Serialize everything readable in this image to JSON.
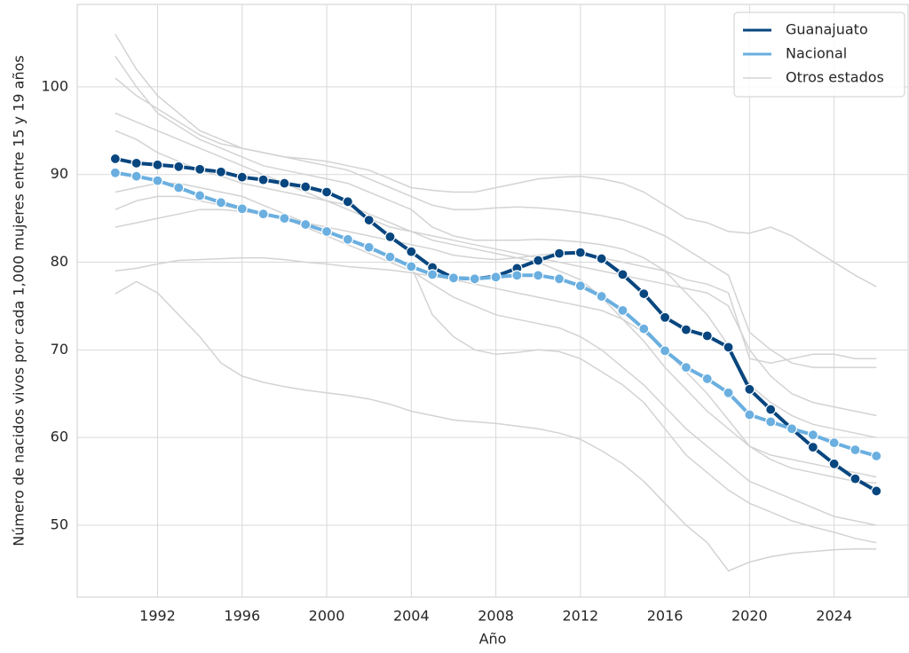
{
  "chart_data": {
    "type": "line",
    "xlabel": "Año",
    "ylabel": "Número de nacidos vivos por cada 1,000 mujeres entre 15 y 19 años",
    "x": [
      1990,
      1991,
      1992,
      1993,
      1994,
      1995,
      1996,
      1997,
      1998,
      1999,
      2000,
      2001,
      2002,
      2003,
      2004,
      2005,
      2006,
      2007,
      2008,
      2009,
      2010,
      2011,
      2012,
      2013,
      2014,
      2015,
      2016,
      2017,
      2018,
      2019,
      2020,
      2021,
      2022,
      2023,
      2024,
      2025,
      2026
    ],
    "xlim": [
      1988.2,
      2027.5
    ],
    "xticks": [
      1992,
      1996,
      2000,
      2004,
      2008,
      2012,
      2016,
      2020,
      2024
    ],
    "ylim": [
      41.8,
      109.4
    ],
    "yticks": [
      50,
      60,
      70,
      80,
      90,
      100
    ],
    "grid": true,
    "legend": "upper right",
    "series": [
      {
        "name": "Guanajuato",
        "color": "#08467f",
        "values": [
          91.8,
          91.3,
          91.1,
          90.9,
          90.6,
          90.3,
          89.7,
          89.4,
          89.0,
          88.6,
          88.0,
          86.9,
          84.8,
          82.9,
          81.2,
          79.4,
          78.2,
          78.1,
          78.4,
          79.3,
          80.2,
          81.0,
          81.1,
          80.4,
          78.6,
          76.4,
          73.7,
          72.3,
          71.6,
          70.3,
          65.5,
          63.2,
          61.0,
          58.9,
          57.0,
          55.3,
          53.9
        ]
      },
      {
        "name": "Nacional",
        "color": "#6aafe0",
        "values": [
          90.2,
          89.8,
          89.3,
          88.5,
          87.6,
          86.8,
          86.1,
          85.5,
          85.0,
          84.3,
          83.5,
          82.6,
          81.7,
          80.6,
          79.5,
          78.6,
          78.2,
          78.1,
          78.3,
          78.5,
          78.5,
          78.1,
          77.3,
          76.1,
          74.5,
          72.4,
          69.9,
          68.0,
          66.7,
          65.1,
          62.6,
          61.8,
          61.0,
          60.3,
          59.4,
          58.6,
          57.9
        ]
      }
    ],
    "other_states": {
      "name": "Otros estados",
      "color": "#d3d3d3",
      "lines": [
        [
          106,
          102,
          99,
          97,
          95,
          94,
          93,
          92.5,
          92,
          91.5,
          91,
          90.5,
          89.5,
          88.5,
          87.5,
          86.5,
          86,
          86,
          86.2,
          86.3,
          86.2,
          86,
          85.7,
          85.3,
          84.8,
          84,
          83,
          81.5,
          80,
          78.5,
          72,
          70,
          68.5,
          68,
          68,
          68,
          68
        ],
        [
          101,
          99,
          97.5,
          96,
          94.5,
          93.5,
          93,
          92.5,
          92,
          91.8,
          91.5,
          91,
          90.5,
          89.5,
          88.5,
          88.2,
          88,
          88,
          88.5,
          89,
          89.5,
          89.7,
          89.8,
          89.5,
          89,
          88,
          86.5,
          85,
          84.5,
          83.5,
          83.3,
          84,
          83,
          81.5,
          80,
          78.5,
          77.2
        ],
        [
          76.4,
          77.8,
          76.5,
          74,
          71.5,
          68.5,
          67,
          66.3,
          65.8,
          65.4,
          65.1,
          64.8,
          64.4,
          63.8,
          63,
          62.5,
          62,
          61.8,
          61.6,
          61.3,
          61,
          60.5,
          59.8,
          58.5,
          57,
          55,
          52.5,
          50,
          48,
          44.8,
          45.8,
          46.4,
          46.8,
          47,
          47.2,
          47.3,
          47.3
        ],
        [
          79,
          79.3,
          79.8,
          80.2,
          80.3,
          80.4,
          80.5,
          80.5,
          80.3,
          80,
          79.8,
          79.5,
          79.3,
          79.1,
          78.8,
          78.4,
          78,
          77.5,
          77,
          76.5,
          76,
          75.5,
          75,
          74.5,
          73.5,
          72,
          70,
          67.5,
          65,
          62,
          59,
          57.5,
          56.5,
          56,
          55.5,
          55,
          54.8
        ],
        [
          84,
          84.5,
          85,
          85.5,
          86,
          86,
          85.8,
          85.5,
          85,
          84.5,
          84,
          83.5,
          83,
          82.5,
          82,
          81.5,
          80.8,
          80.5,
          80.3,
          80.5,
          80.8,
          81,
          81,
          80.5,
          80,
          79.5,
          79,
          78,
          77.5,
          76.5,
          69,
          68.5,
          69,
          69.5,
          69.5,
          69,
          69
        ],
        [
          95,
          94,
          92.5,
          91.5,
          90.5,
          89.8,
          89,
          88.5,
          88,
          87.5,
          87,
          86.5,
          85.5,
          84.5,
          83.5,
          82.5,
          82,
          81.5,
          81,
          80.5,
          80,
          79,
          78,
          76,
          73.5,
          71,
          68,
          65.5,
          63,
          61,
          59,
          58,
          57.5,
          57,
          56.5,
          56,
          55.5
        ],
        [
          86,
          87,
          87.5,
          87.5,
          87,
          86.5,
          86,
          85.5,
          85,
          84,
          83,
          82,
          81,
          80,
          79,
          77.5,
          76,
          75,
          74,
          73.5,
          73,
          72.5,
          71.5,
          70,
          68,
          66,
          63.5,
          61,
          59,
          57,
          55,
          54,
          53,
          52,
          51,
          50.5,
          50
        ],
        [
          97,
          96,
          95,
          94,
          93,
          92,
          91,
          90,
          89,
          88,
          87,
          86,
          85,
          84,
          83.5,
          83,
          82.5,
          82,
          81.5,
          81,
          80.5,
          80,
          79.5,
          79,
          78.5,
          78,
          77.5,
          77,
          76.5,
          75,
          70,
          67,
          65,
          64,
          63.5,
          63,
          62.5
        ],
        [
          88,
          88.5,
          89,
          89,
          88.5,
          88,
          87.5,
          86.5,
          85.5,
          84.5,
          83.5,
          82.5,
          81.5,
          80.5,
          79.5,
          74,
          71.5,
          70,
          69.5,
          69.7,
          70,
          69.8,
          69,
          67.5,
          66,
          64,
          61,
          58,
          56,
          54,
          52.5,
          51.5,
          50.5,
          49.8,
          49.2,
          48.5,
          48
        ],
        [
          103.5,
          100,
          97,
          95.5,
          94,
          93,
          92,
          91,
          90.5,
          90,
          89.5,
          89,
          88,
          87,
          86,
          84,
          83,
          82.5,
          82.5,
          82.5,
          82.6,
          82.5,
          82.3,
          82,
          81.5,
          80.5,
          79,
          76.5,
          74,
          70.5,
          66,
          64,
          62.5,
          61.5,
          61,
          60.5,
          60
        ]
      ]
    }
  }
}
